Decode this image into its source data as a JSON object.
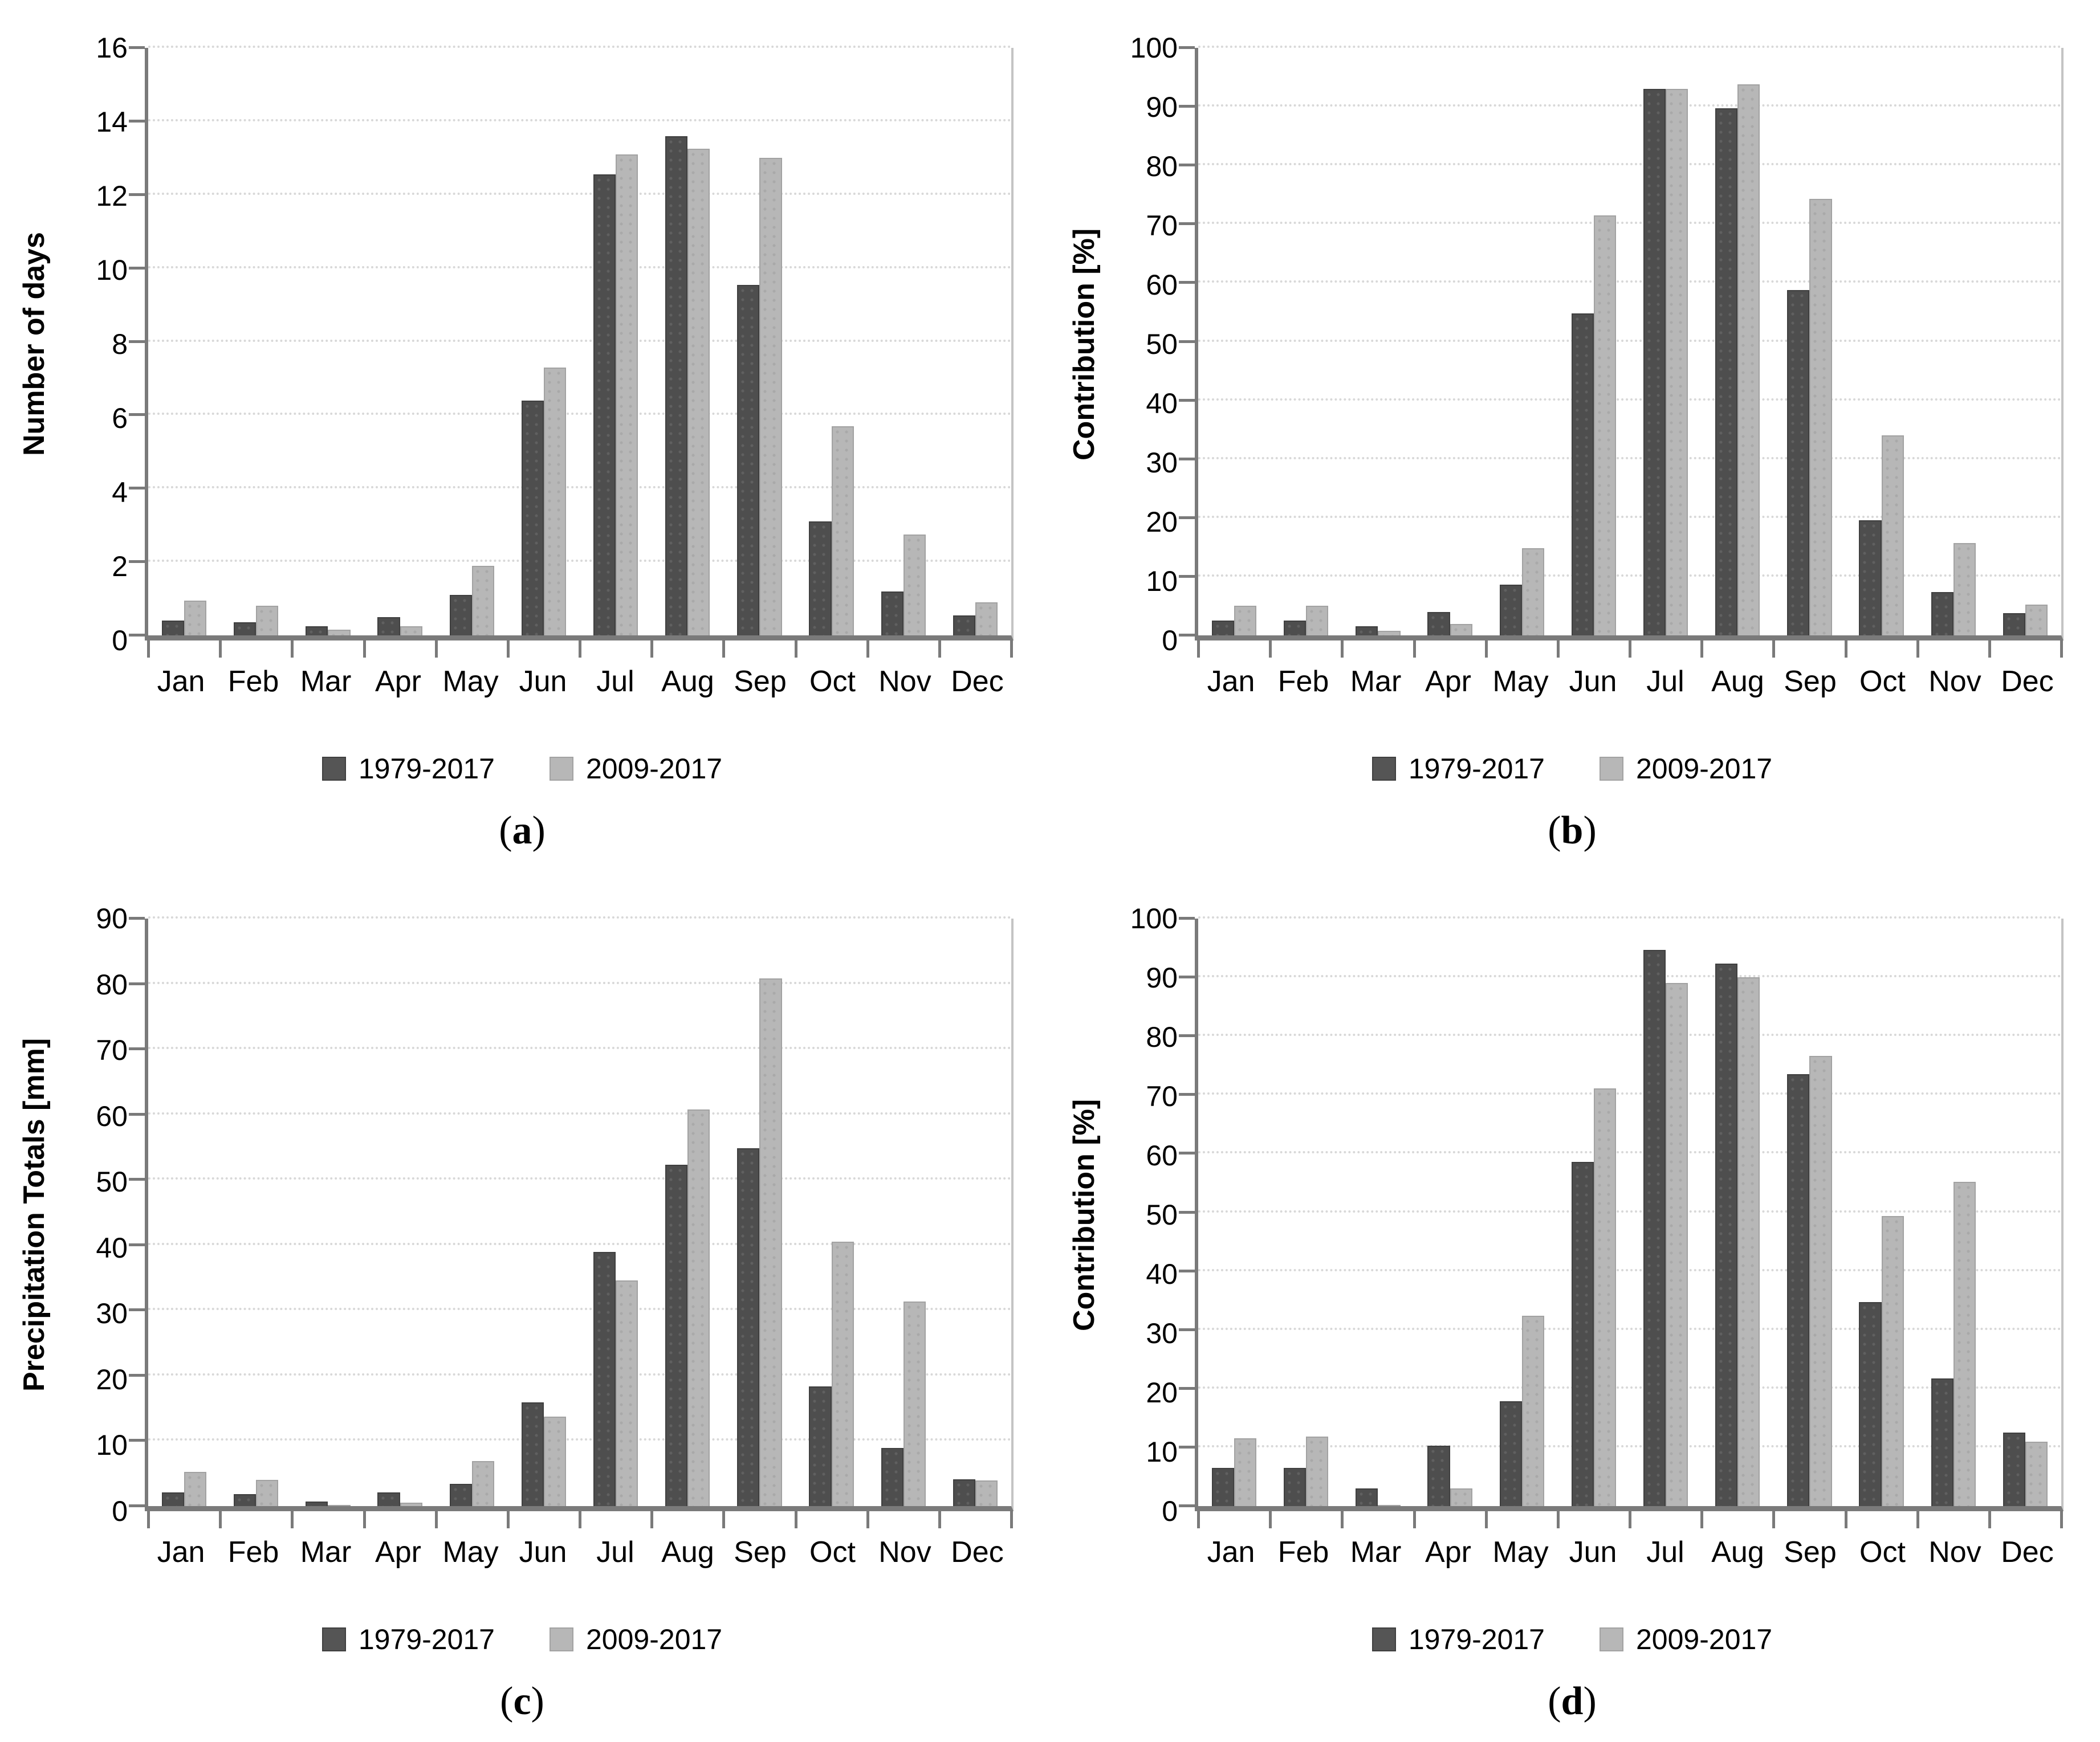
{
  "figure": {
    "series_colors": {
      "series_1979_2017": "#4e4e4e",
      "series_2009_2017": "#b7b7b7"
    },
    "axis_color": "#7a7a7a",
    "gridline_color": "#d8d8d8"
  },
  "chart_data": [
    {
      "type": "bar",
      "panel": "a",
      "title": "",
      "xlabel": "",
      "ylabel": "Number of days",
      "ylim": [
        0,
        16
      ],
      "ytick_step": 2,
      "grid": true,
      "legend_position": "bottom",
      "categories": [
        "Jan",
        "Feb",
        "Mar",
        "Apr",
        "May",
        "Jun",
        "Jul",
        "Aug",
        "Sep",
        "Oct",
        "Nov",
        "Dec"
      ],
      "series": [
        {
          "name": "1979-2017",
          "values": [
            0.4,
            0.35,
            0.25,
            0.5,
            1.1,
            6.4,
            12.55,
            13.6,
            9.55,
            3.1,
            1.2,
            0.55
          ]
        },
        {
          "name": "2009-2017",
          "values": [
            0.95,
            0.8,
            0.15,
            0.25,
            1.9,
            7.3,
            13.1,
            13.25,
            13.0,
            5.7,
            2.75,
            0.9
          ]
        }
      ],
      "caption": {
        "open": "(",
        "letter": "a",
        "close": ")"
      }
    },
    {
      "type": "bar",
      "panel": "b",
      "title": "",
      "xlabel": "",
      "ylabel": "Contribution [%]",
      "ylim": [
        0,
        100
      ],
      "ytick_step": 10,
      "grid": true,
      "legend_position": "bottom",
      "categories": [
        "Jan",
        "Feb",
        "Mar",
        "Apr",
        "May",
        "Jun",
        "Jul",
        "Aug",
        "Sep",
        "Oct",
        "Nov",
        "Dec"
      ],
      "series": [
        {
          "name": "1979-2017",
          "values": [
            2.5,
            2.5,
            1.6,
            4.0,
            8.6,
            54.8,
            93.0,
            89.7,
            58.8,
            19.6,
            7.4,
            3.8
          ]
        },
        {
          "name": "2009-2017",
          "values": [
            5.0,
            5.0,
            0.8,
            1.9,
            14.8,
            71.5,
            93.0,
            93.8,
            74.3,
            34.0,
            15.7,
            5.2
          ]
        }
      ],
      "caption": {
        "open": "(",
        "letter": "b",
        "close": ")"
      }
    },
    {
      "type": "bar",
      "panel": "c",
      "title": "",
      "xlabel": "",
      "ylabel": "Precipitation Totals [mm]",
      "ylim": [
        0,
        90
      ],
      "ytick_step": 10,
      "grid": true,
      "legend_position": "bottom",
      "categories": [
        "Jan",
        "Feb",
        "Mar",
        "Apr",
        "May",
        "Jun",
        "Jul",
        "Aug",
        "Sep",
        "Oct",
        "Nov",
        "Dec"
      ],
      "series": [
        {
          "name": "1979-2017",
          "values": [
            2.1,
            1.8,
            0.7,
            2.1,
            3.4,
            15.9,
            38.9,
            52.3,
            54.8,
            18.3,
            8.9,
            4.1
          ]
        },
        {
          "name": "2009-2017",
          "values": [
            5.2,
            4.0,
            0.2,
            0.5,
            6.9,
            13.7,
            34.6,
            60.8,
            80.8,
            40.5,
            31.3,
            3.9
          ]
        }
      ],
      "caption": {
        "open": "(",
        "letter": "c",
        "close": ")"
      }
    },
    {
      "type": "bar",
      "panel": "d",
      "title": "",
      "xlabel": "",
      "ylabel": "Contribution [%]",
      "ylim": [
        0,
        100
      ],
      "ytick_step": 10,
      "grid": true,
      "legend_position": "bottom",
      "categories": [
        "Jan",
        "Feb",
        "Mar",
        "Apr",
        "May",
        "Jun",
        "Jul",
        "Aug",
        "Sep",
        "Oct",
        "Nov",
        "Dec"
      ],
      "series": [
        {
          "name": "1979-2017",
          "values": [
            6.5,
            6.5,
            3.0,
            10.3,
            17.8,
            58.6,
            94.7,
            92.3,
            73.5,
            34.7,
            21.7,
            12.5
          ]
        },
        {
          "name": "2009-2017",
          "values": [
            11.5,
            11.8,
            0.2,
            3.0,
            32.4,
            71.1,
            89.0,
            90.0,
            76.6,
            49.4,
            55.2,
            11.0
          ]
        }
      ],
      "caption": {
        "open": "(",
        "letter": "d",
        "close": ")"
      }
    }
  ]
}
